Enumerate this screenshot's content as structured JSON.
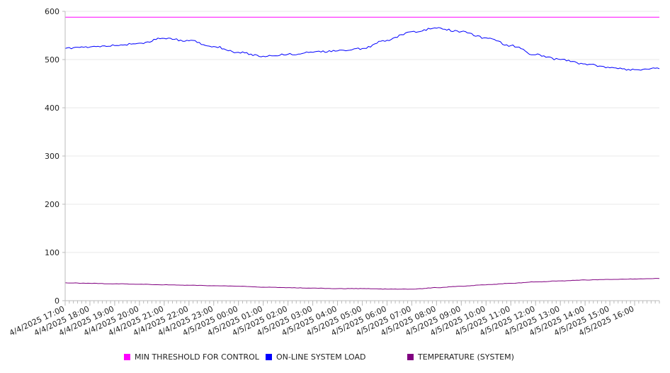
{
  "chart_data": {
    "type": "line",
    "y_ticks": [
      0,
      100,
      200,
      300,
      400,
      500,
      600
    ],
    "ylim": [
      0,
      600
    ],
    "x_tick_labels": [
      "4/4/2025 17:00",
      "4/4/2025 18:00",
      "4/4/2025 19:00",
      "4/4/2025 20:00",
      "4/4/2025 21:00",
      "4/4/2025 22:00",
      "4/4/2025 23:00",
      "4/5/2025 00:00",
      "4/5/2025 01:00",
      "4/5/2025 02:00",
      "4/5/2025 03:00",
      "4/5/2025 04:00",
      "4/5/2025 05:00",
      "4/5/2025 06:00",
      "4/5/2025 07:00",
      "4/5/2025 08:00",
      "4/5/2025 09:00",
      "4/5/2025 10:00",
      "4/5/2025 11:00",
      "4/5/2025 12:00",
      "4/5/2025 13:00",
      "4/5/2025 14:00",
      "4/5/2025 15:00",
      "4/5/2025 16:00"
    ],
    "xlim": [
      "4/4/2025 17:00",
      "4/5/2025 17:00"
    ],
    "grid": true,
    "legend_position": "bottom",
    "series": [
      {
        "name": "MIN THRESHOLD FOR CONTROL",
        "color": "#ff00ff",
        "x": [
          "4/4/2025 17:00",
          "4/5/2025 17:00"
        ],
        "values": [
          588,
          588
        ]
      },
      {
        "name": "ON-LINE SYSTEM LOAD",
        "color": "#0000ff",
        "x": [
          "4/4/2025 17:00",
          "4/4/2025 18:00",
          "4/4/2025 19:00",
          "4/4/2025 20:00",
          "4/4/2025 21:00",
          "4/4/2025 22:00",
          "4/4/2025 23:00",
          "4/5/2025 00:00",
          "4/5/2025 01:00",
          "4/5/2025 02:00",
          "4/5/2025 03:00",
          "4/5/2025 04:00",
          "4/5/2025 05:00",
          "4/5/2025 06:00",
          "4/5/2025 07:00",
          "4/5/2025 08:00",
          "4/5/2025 09:00",
          "4/5/2025 10:00",
          "4/5/2025 11:00",
          "4/5/2025 12:00",
          "4/5/2025 13:00",
          "4/5/2025 14:00",
          "4/5/2025 15:00",
          "4/5/2025 16:00",
          "4/5/2025 17:00"
        ],
        "values": [
          523,
          526,
          529,
          534,
          544,
          539,
          527,
          515,
          507,
          511,
          515,
          518,
          523,
          540,
          558,
          565,
          558,
          545,
          529,
          510,
          500,
          491,
          483,
          479,
          481
        ]
      },
      {
        "name": "TEMPERATURE (SYSTEM)",
        "color": "#800080",
        "x": [
          "4/4/2025 17:00",
          "4/4/2025 18:00",
          "4/4/2025 19:00",
          "4/4/2025 20:00",
          "4/4/2025 21:00",
          "4/4/2025 22:00",
          "4/4/2025 23:00",
          "4/5/2025 00:00",
          "4/5/2025 01:00",
          "4/5/2025 02:00",
          "4/5/2025 03:00",
          "4/5/2025 04:00",
          "4/5/2025 05:00",
          "4/5/2025 06:00",
          "4/5/2025 07:00",
          "4/5/2025 08:00",
          "4/5/2025 09:00",
          "4/5/2025 10:00",
          "4/5/2025 11:00",
          "4/5/2025 12:00",
          "4/5/2025 13:00",
          "4/5/2025 14:00",
          "4/5/2025 15:00",
          "4/5/2025 16:00",
          "4/5/2025 17:00"
        ],
        "values": [
          37,
          36,
          35,
          34,
          33,
          32,
          31,
          30,
          28,
          27,
          26,
          25,
          25,
          24,
          24,
          27,
          30,
          33,
          36,
          39,
          41,
          43,
          44,
          45,
          46
        ]
      }
    ]
  },
  "colors": {
    "grid": "#e8e8e8",
    "axis": "#bbbbbb",
    "text": "#222222"
  }
}
